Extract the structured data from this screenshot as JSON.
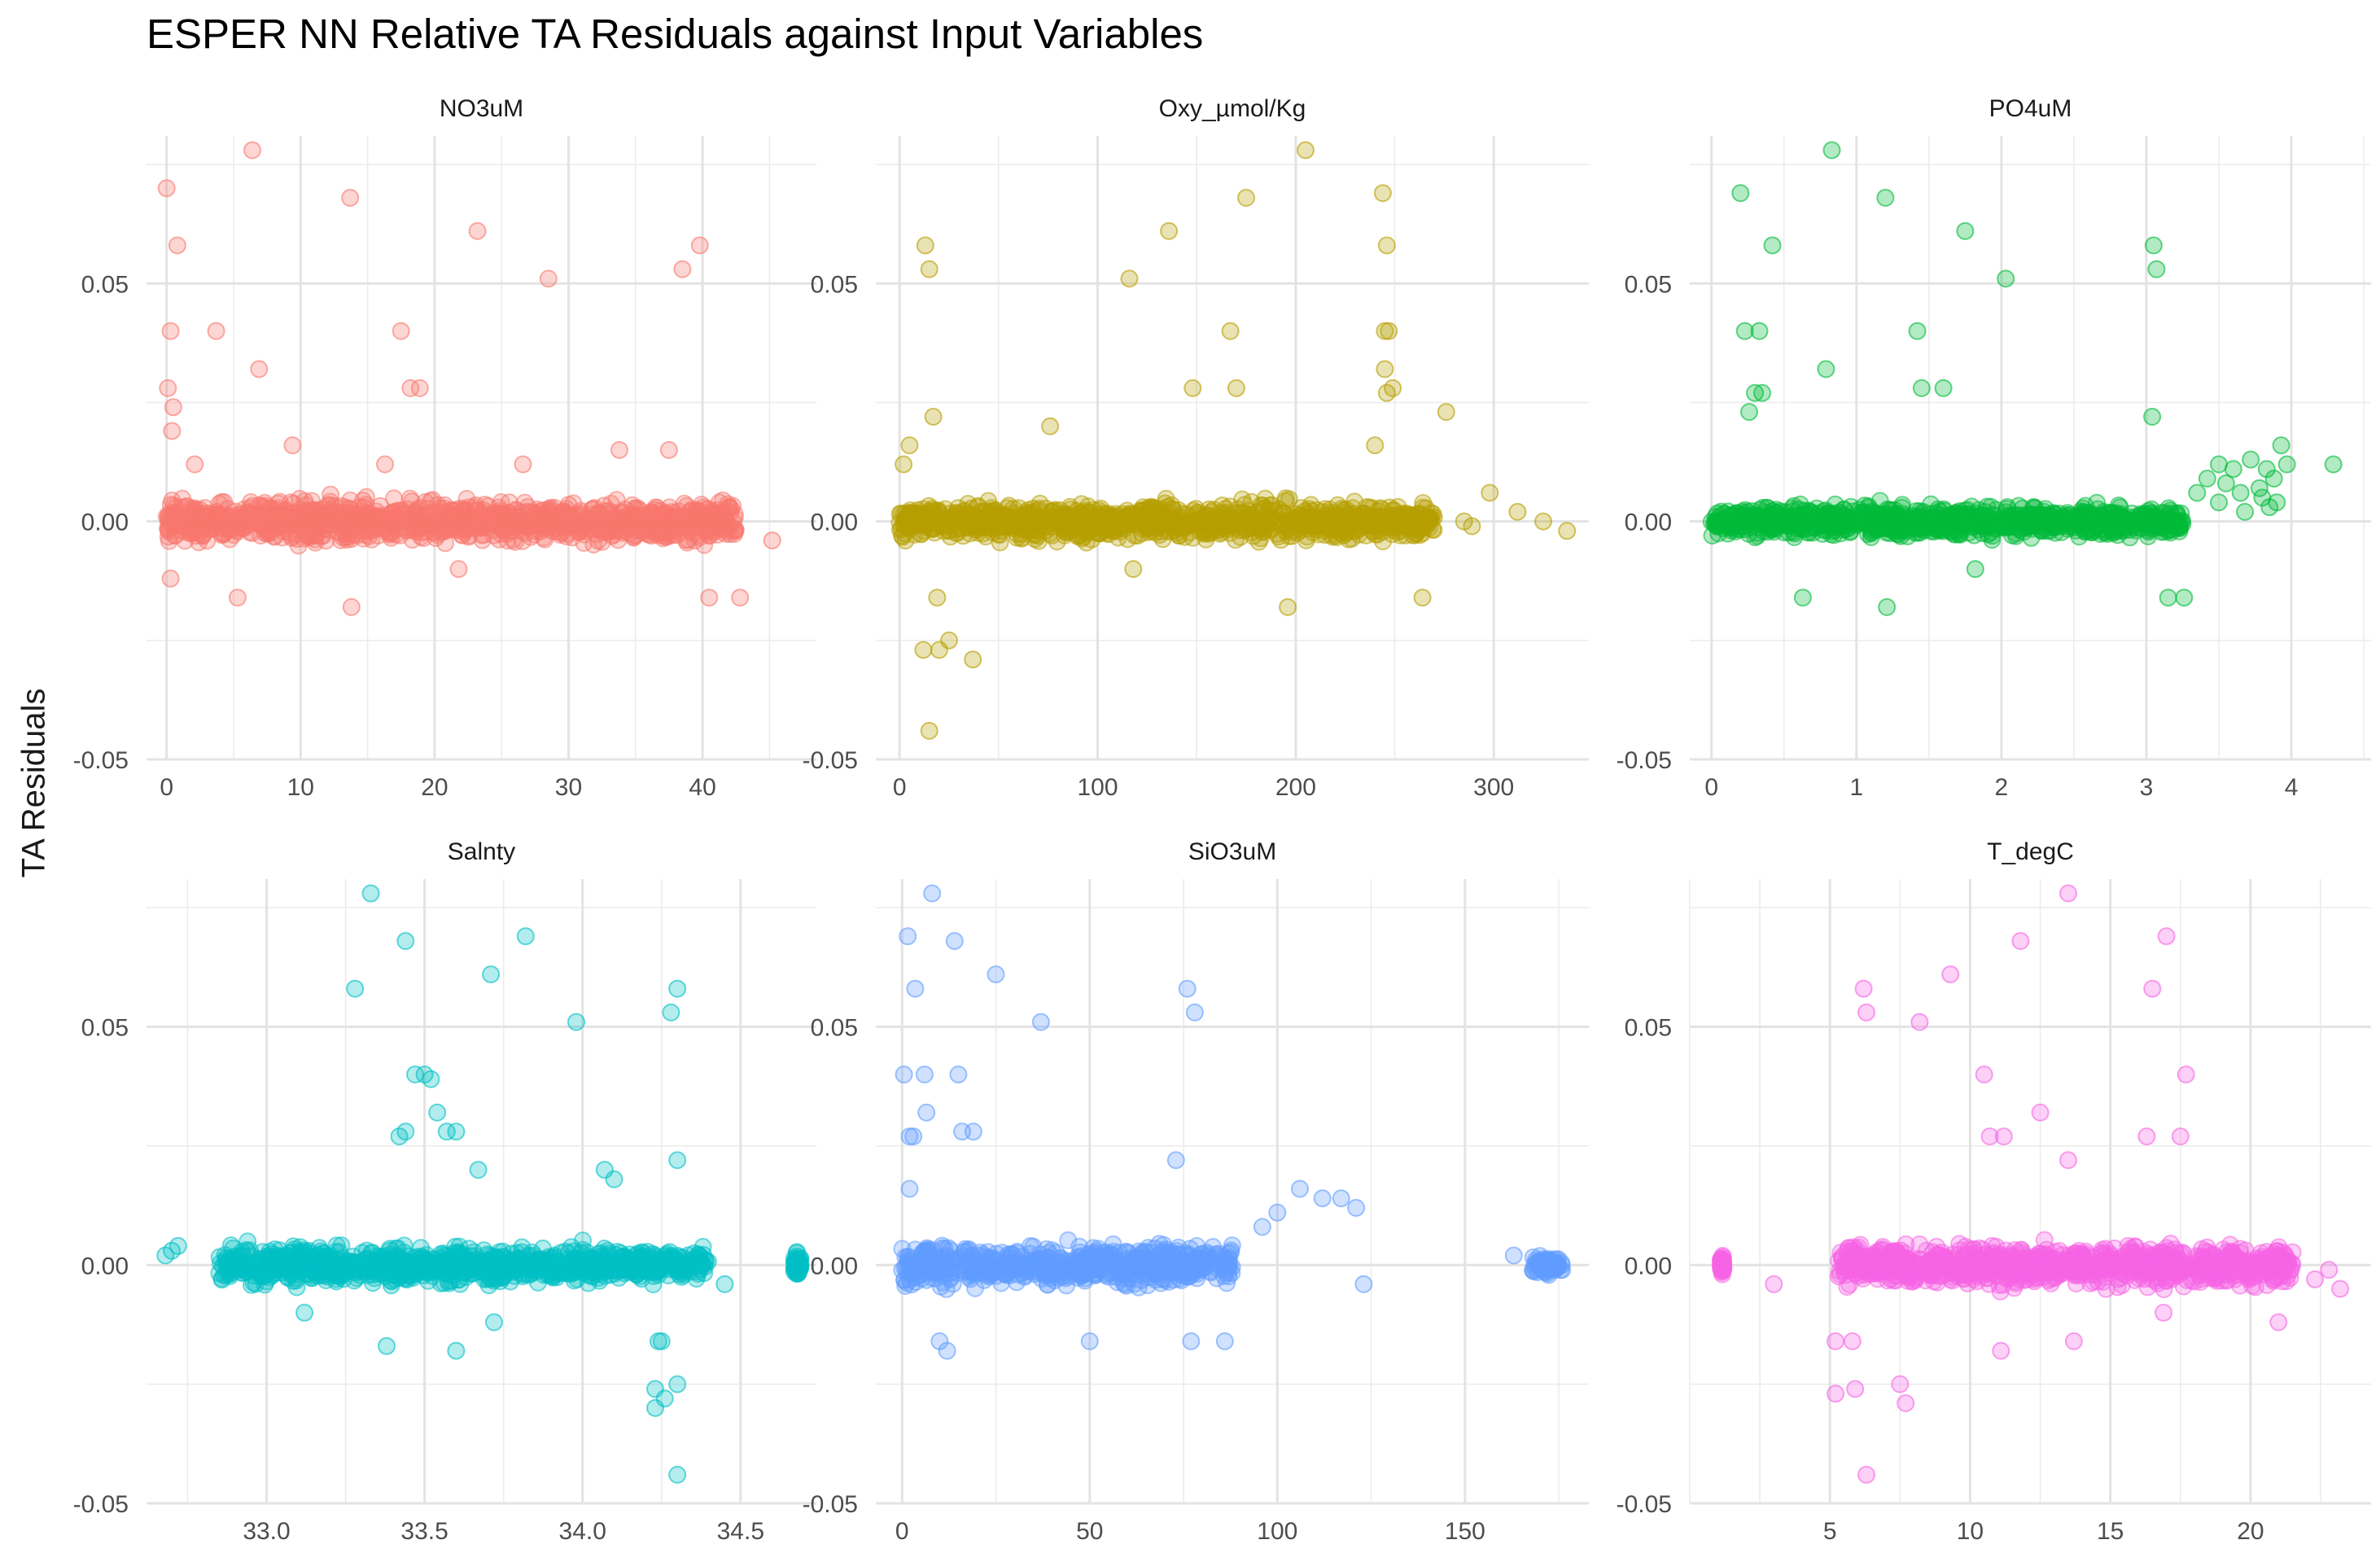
{
  "title": "ESPER NN Relative TA Residuals against Input Variables",
  "ylabel": "TA Residuals",
  "chart_data": [
    {
      "type": "scatter",
      "title": "NO3uM",
      "color": "#F8766D",
      "xlim": [
        -1.5,
        48.5
      ],
      "ylim": [
        -0.05,
        0.081
      ],
      "xticks": [
        0,
        10,
        20,
        30,
        40
      ],
      "xtick_labels": [
        "0",
        "10",
        "20",
        "30",
        "40"
      ],
      "yticks": [
        -0.05,
        0,
        0.05
      ],
      "ytick_labels": [
        "-0.05",
        "0.00",
        "0.05"
      ],
      "dense": [
        [
          0,
          42.5,
          0.004
        ]
      ],
      "points": [
        [
          0,
          0.07
        ],
        [
          0.3,
          0.04
        ],
        [
          0.1,
          0.028
        ],
        [
          0.8,
          0.058
        ],
        [
          0.5,
          0.024
        ],
        [
          3.7,
          0.04
        ],
        [
          6.4,
          0.078
        ],
        [
          6.9,
          0.032
        ],
        [
          13.7,
          0.068
        ],
        [
          17.5,
          0.04
        ],
        [
          18.2,
          0.028
        ],
        [
          18.9,
          0.028
        ],
        [
          23.2,
          0.061
        ],
        [
          28.5,
          0.051
        ],
        [
          38.5,
          0.053
        ],
        [
          39.8,
          0.058
        ],
        [
          5.3,
          -0.016
        ],
        [
          13.8,
          -0.018
        ],
        [
          21.8,
          -0.01
        ],
        [
          40.5,
          -0.016
        ],
        [
          42.8,
          -0.016
        ],
        [
          45.2,
          -0.004
        ],
        [
          2.1,
          0.012
        ],
        [
          9.4,
          0.016
        ],
        [
          16.3,
          0.012
        ],
        [
          26.6,
          0.012
        ],
        [
          33.8,
          0.015
        ],
        [
          37.5,
          0.015
        ],
        [
          0.4,
          0.019
        ],
        [
          0.3,
          -0.012
        ]
      ]
    },
    {
      "type": "scatter",
      "title": "Oxy_µmol/Kg",
      "color": "#B79F00",
      "xlim": [
        -12,
        348
      ],
      "ylim": [
        -0.05,
        0.081
      ],
      "xticks": [
        0,
        100,
        200,
        300
      ],
      "xtick_labels": [
        "0",
        "100",
        "200",
        "300"
      ],
      "yticks": [
        -0.05,
        0,
        0.05
      ],
      "ytick_labels": [
        "-0.05",
        "0.00",
        "0.05"
      ],
      "dense": [
        [
          0,
          270,
          0.0035
        ]
      ],
      "points": [
        [
          205,
          0.078
        ],
        [
          244,
          0.069
        ],
        [
          175,
          0.068
        ],
        [
          136,
          0.061
        ],
        [
          13,
          0.058
        ],
        [
          15,
          0.053
        ],
        [
          116,
          0.051
        ],
        [
          246,
          0.058
        ],
        [
          247,
          0.04
        ],
        [
          167,
          0.04
        ],
        [
          245,
          0.032
        ],
        [
          246,
          0.027
        ],
        [
          249,
          0.028
        ],
        [
          148,
          0.028
        ],
        [
          170,
          0.028
        ],
        [
          276,
          0.023
        ],
        [
          17,
          0.022
        ],
        [
          245,
          0.04
        ],
        [
          15,
          -0.044
        ],
        [
          12,
          -0.027
        ],
        [
          20,
          -0.027
        ],
        [
          25,
          -0.025
        ],
        [
          37,
          -0.029
        ],
        [
          19,
          -0.016
        ],
        [
          264,
          -0.016
        ],
        [
          196,
          -0.018
        ],
        [
          118,
          -0.01
        ],
        [
          240,
          0.016
        ],
        [
          76,
          0.02
        ],
        [
          298,
          0.006
        ],
        [
          312,
          0.002
        ],
        [
          325,
          0.0
        ],
        [
          337,
          -0.002
        ],
        [
          289,
          -0.001
        ],
        [
          285,
          0.0
        ],
        [
          5,
          0.016
        ],
        [
          2,
          0.012
        ]
      ]
    },
    {
      "type": "scatter",
      "title": "PO4uM",
      "color": "#00BA38",
      "xlim": [
        -0.15,
        4.55
      ],
      "ylim": [
        -0.05,
        0.081
      ],
      "xticks": [
        0,
        1,
        2,
        3,
        4
      ],
      "xtick_labels": [
        "0",
        "1",
        "2",
        "3",
        "4"
      ],
      "yticks": [
        -0.05,
        0,
        0.05
      ],
      "ytick_labels": [
        "-0.05",
        "0.00",
        "0.05"
      ],
      "dense": [
        [
          0,
          3.25,
          0.003
        ]
      ],
      "points": [
        [
          0.83,
          0.078
        ],
        [
          0.2,
          0.069
        ],
        [
          1.2,
          0.068
        ],
        [
          1.75,
          0.061
        ],
        [
          0.42,
          0.058
        ],
        [
          3.05,
          0.058
        ],
        [
          3.07,
          0.053
        ],
        [
          2.03,
          0.051
        ],
        [
          0.23,
          0.04
        ],
        [
          0.33,
          0.04
        ],
        [
          1.42,
          0.04
        ],
        [
          0.3,
          0.027
        ],
        [
          0.35,
          0.027
        ],
        [
          1.45,
          0.028
        ],
        [
          1.6,
          0.028
        ],
        [
          0.26,
          0.023
        ],
        [
          3.04,
          0.022
        ],
        [
          0.79,
          0.032
        ],
        [
          0.63,
          -0.016
        ],
        [
          1.21,
          -0.018
        ],
        [
          3.15,
          -0.016
        ],
        [
          3.26,
          -0.016
        ],
        [
          1.82,
          -0.01
        ],
        [
          3.35,
          0.006
        ],
        [
          3.42,
          0.009
        ],
        [
          3.5,
          0.012
        ],
        [
          3.55,
          0.008
        ],
        [
          3.6,
          0.011
        ],
        [
          3.65,
          0.006
        ],
        [
          3.72,
          0.013
        ],
        [
          3.78,
          0.007
        ],
        [
          3.83,
          0.011
        ],
        [
          3.88,
          0.009
        ],
        [
          3.93,
          0.016
        ],
        [
          3.97,
          0.012
        ],
        [
          3.5,
          0.004
        ],
        [
          3.68,
          0.002
        ],
        [
          3.8,
          0.005
        ],
        [
          3.85,
          0.003
        ],
        [
          4.29,
          0.012
        ],
        [
          3.9,
          0.004
        ]
      ]
    },
    {
      "type": "scatter",
      "title": "Salnty",
      "color": "#00BFC4",
      "xlim": [
        32.62,
        34.74
      ],
      "ylim": [
        -0.05,
        0.081
      ],
      "xticks": [
        33.0,
        33.5,
        34.0,
        34.5
      ],
      "xtick_labels": [
        "33.0",
        "33.5",
        "34.0",
        "34.5"
      ],
      "yticks": [
        -0.05,
        0,
        0.05
      ],
      "ytick_labels": [
        "-0.05",
        "0.00",
        "0.05"
      ],
      "dense": [
        [
          32.85,
          34.4,
          0.0035
        ],
        [
          34.67,
          34.69,
          0.002
        ]
      ],
      "points": [
        [
          33.33,
          0.078
        ],
        [
          33.82,
          0.069
        ],
        [
          33.44,
          0.068
        ],
        [
          33.71,
          0.061
        ],
        [
          33.28,
          0.058
        ],
        [
          34.3,
          0.058
        ],
        [
          34.28,
          0.053
        ],
        [
          33.98,
          0.051
        ],
        [
          33.47,
          0.04
        ],
        [
          33.5,
          0.04
        ],
        [
          33.52,
          0.039
        ],
        [
          33.42,
          0.027
        ],
        [
          33.44,
          0.028
        ],
        [
          33.57,
          0.028
        ],
        [
          33.6,
          0.028
        ],
        [
          33.54,
          0.032
        ],
        [
          34.3,
          0.022
        ],
        [
          33.6,
          -0.018
        ],
        [
          33.38,
          -0.017
        ],
        [
          34.24,
          -0.016
        ],
        [
          34.25,
          -0.016
        ],
        [
          34.23,
          -0.026
        ],
        [
          34.26,
          -0.028
        ],
        [
          34.3,
          -0.025
        ],
        [
          34.3,
          -0.044
        ],
        [
          34.23,
          -0.03
        ],
        [
          33.12,
          -0.01
        ],
        [
          33.72,
          -0.012
        ],
        [
          34.45,
          -0.004
        ],
        [
          32.68,
          0.002
        ],
        [
          32.7,
          0.003
        ],
        [
          32.72,
          0.004
        ],
        [
          34.07,
          0.02
        ],
        [
          34.1,
          0.018
        ],
        [
          33.67,
          0.02
        ]
      ]
    },
    {
      "type": "scatter",
      "title": "SiO3uM",
      "color": "#619CFF",
      "xlim": [
        -7,
        183
      ],
      "ylim": [
        -0.05,
        0.081
      ],
      "xticks": [
        0,
        50,
        100,
        150
      ],
      "xtick_labels": [
        "0",
        "50",
        "100",
        "150"
      ],
      "yticks": [
        -0.05,
        0,
        0.05
      ],
      "ytick_labels": [
        "-0.05",
        "0.00",
        "0.05"
      ],
      "dense": [
        [
          0,
          88,
          0.004
        ],
        [
          168,
          176,
          0.002
        ]
      ],
      "points": [
        [
          8,
          0.078
        ],
        [
          1.5,
          0.069
        ],
        [
          14,
          0.068
        ],
        [
          25,
          0.061
        ],
        [
          3.5,
          0.058
        ],
        [
          76,
          0.058
        ],
        [
          78,
          0.053
        ],
        [
          37,
          0.051
        ],
        [
          0.5,
          0.04
        ],
        [
          6,
          0.04
        ],
        [
          15,
          0.04
        ],
        [
          2,
          0.027
        ],
        [
          3,
          0.027
        ],
        [
          16,
          0.028
        ],
        [
          19,
          0.028
        ],
        [
          6.5,
          0.032
        ],
        [
          73,
          0.022
        ],
        [
          12,
          -0.018
        ],
        [
          10,
          -0.016
        ],
        [
          50,
          -0.016
        ],
        [
          77,
          -0.016
        ],
        [
          86,
          -0.016
        ],
        [
          123,
          -0.004
        ],
        [
          106,
          0.016
        ],
        [
          112,
          0.014
        ],
        [
          117,
          0.014
        ],
        [
          121,
          0.012
        ],
        [
          100,
          0.011
        ],
        [
          96,
          0.008
        ],
        [
          163,
          0.002
        ],
        [
          2,
          0.016
        ]
      ]
    },
    {
      "type": "scatter",
      "title": "T_degC",
      "color": "#F564E3",
      "xlim": [
        0.0,
        24.3
      ],
      "ylim": [
        -0.05,
        0.081
      ],
      "xticks": [
        5,
        10,
        15,
        20
      ],
      "xtick_labels": [
        "5",
        "10",
        "15",
        "20"
      ],
      "yticks": [
        -0.05,
        0,
        0.05
      ],
      "ytick_labels": [
        "-0.05",
        "0.00",
        "0.05"
      ],
      "dense": [
        [
          5.3,
          21.5,
          0.004
        ],
        [
          1.1,
          1.2,
          0.002
        ]
      ],
      "points": [
        [
          13.5,
          0.078
        ],
        [
          17.0,
          0.069
        ],
        [
          11.8,
          0.068
        ],
        [
          9.3,
          0.061
        ],
        [
          6.2,
          0.058
        ],
        [
          16.5,
          0.058
        ],
        [
          6.3,
          0.053
        ],
        [
          8.2,
          0.051
        ],
        [
          10.5,
          0.04
        ],
        [
          17.7,
          0.04
        ],
        [
          10.7,
          0.027
        ],
        [
          11.2,
          0.027
        ],
        [
          16.3,
          0.027
        ],
        [
          17.5,
          0.027
        ],
        [
          12.5,
          0.032
        ],
        [
          13.5,
          0.022
        ],
        [
          6.3,
          -0.044
        ],
        [
          5.2,
          -0.027
        ],
        [
          5.9,
          -0.026
        ],
        [
          7.5,
          -0.025
        ],
        [
          7.7,
          -0.029
        ],
        [
          5.2,
          -0.016
        ],
        [
          5.8,
          -0.016
        ],
        [
          13.7,
          -0.016
        ],
        [
          16.9,
          -0.01
        ],
        [
          11.1,
          -0.018
        ],
        [
          21.0,
          -0.012
        ],
        [
          22.3,
          -0.003
        ],
        [
          23.2,
          -0.005
        ],
        [
          3.0,
          -0.004
        ],
        [
          22.8,
          -0.001
        ]
      ]
    }
  ]
}
